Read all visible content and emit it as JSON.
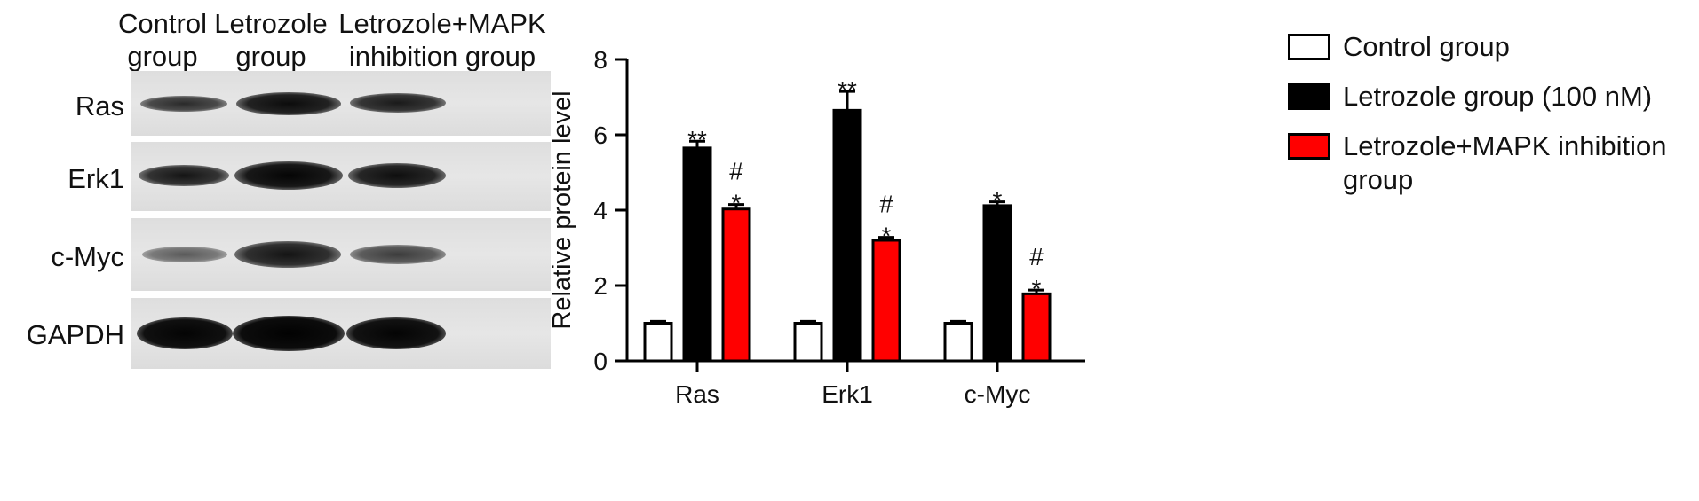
{
  "blot": {
    "columns": [
      {
        "line1": "Control",
        "line2": "group"
      },
      {
        "line1": "Letrozole",
        "line2": "group"
      },
      {
        "line1": "Letrozole+MAPK",
        "line2": "inhibition group"
      }
    ],
    "rows": [
      "Ras",
      "Erk1",
      "c-Myc",
      "GAPDH"
    ]
  },
  "chart_data": {
    "type": "bar",
    "categories": [
      "Ras",
      "Erk1",
      "c-Myc"
    ],
    "ylabel": "Relative protein level",
    "ylim": [
      0,
      8
    ],
    "yticks": [
      0,
      2,
      4,
      6,
      8
    ],
    "series": [
      {
        "name": "Control group",
        "color": "#ffffff",
        "values": [
          1.0,
          1.0,
          1.0
        ],
        "errors": [
          0.05,
          0.05,
          0.05
        ],
        "annotations": [
          "",
          "",
          ""
        ]
      },
      {
        "name": "Letrozole group (100 nM)",
        "color": "#000000",
        "values": [
          5.65,
          6.65,
          4.12
        ],
        "errors": [
          0.18,
          0.5,
          0.1
        ],
        "annotations": [
          "**",
          "**",
          "*"
        ]
      },
      {
        "name": "Letrozole+MAPK inhibition group",
        "color": "#ff0000",
        "values": [
          4.03,
          3.2,
          1.78
        ],
        "errors": [
          0.12,
          0.08,
          0.1
        ],
        "annotations": [
          "#\n*",
          "#\n*",
          "#\n*"
        ]
      }
    ]
  },
  "legend": [
    {
      "label": "Control group",
      "color": "#ffffff"
    },
    {
      "label": "Letrozole group (100 nM)",
      "color": "#000000"
    },
    {
      "label": "Letrozole+MAPK inhibition",
      "label2": "group",
      "color": "#ff0000"
    }
  ]
}
